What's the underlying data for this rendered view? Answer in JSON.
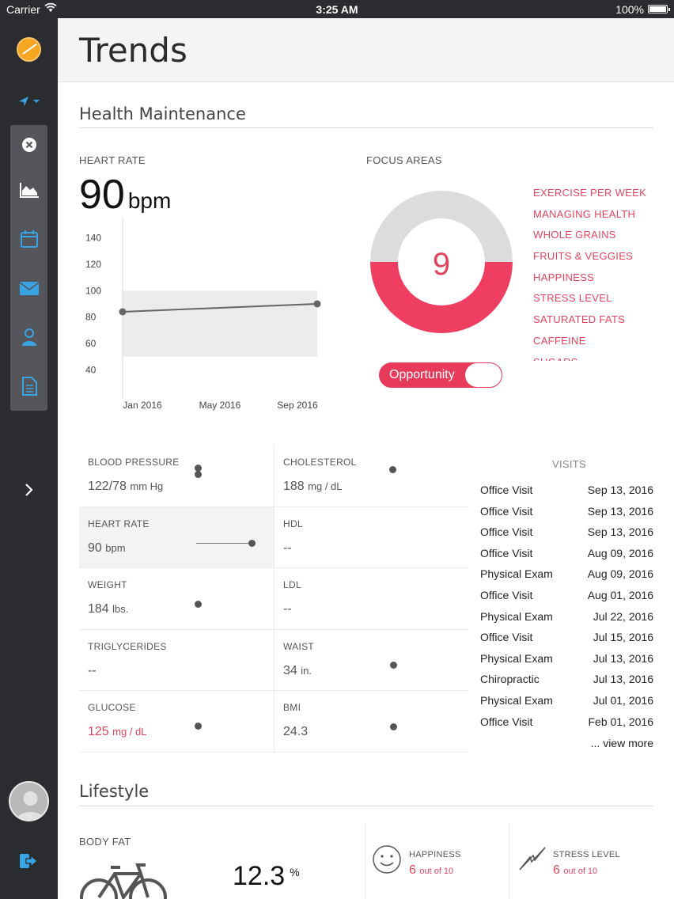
{
  "status_bar": {
    "carrier": "Carrier",
    "time": "3:25 AM",
    "battery": "100%"
  },
  "page": {
    "title": "Trends"
  },
  "health": {
    "section_title": "Health Maintenance",
    "heart_rate_label": "HEART RATE",
    "heart_rate_value": "90",
    "heart_rate_unit": "bpm",
    "focus_label": "FOCUS AREAS",
    "focus_count": "9",
    "focus_items": [
      "EXERCISE PER WEEK",
      "MANAGING HEALTH",
      "WHOLE GRAINS",
      "FRUITS & VEGGIES",
      "HAPPINESS",
      "STRESS LEVEL",
      "SATURATED FATS",
      "CAFFEINE",
      "SUGARS"
    ],
    "toggle_label": "Opportunity",
    "accent_color": "#e83a5a"
  },
  "chart_data": {
    "type": "line",
    "y_ticks": [
      "140",
      "120",
      "100",
      "80",
      "60",
      "40"
    ],
    "x_ticks": [
      "Jan 2016",
      "May 2016",
      "Sep 2016"
    ],
    "ylim": [
      30,
      150
    ],
    "xlim": [
      "2015-12",
      "2016-10"
    ],
    "normal_band": [
      50,
      100
    ],
    "series": [
      {
        "x": [
          "2015-12",
          "2016-10"
        ],
        "values": [
          84,
          90
        ]
      }
    ]
  },
  "metrics": [
    {
      "label": "BLOOD PRESSURE",
      "value": "122/78",
      "unit": "mm Hg"
    },
    {
      "label": "CHOLESTEROL",
      "value": "188",
      "unit": "mg / dL"
    },
    {
      "label": "HEART RATE",
      "value": "90",
      "unit": "bpm"
    },
    {
      "label": "HDL",
      "value": "--",
      "unit": ""
    },
    {
      "label": "WEIGHT",
      "value": "184",
      "unit": "lbs."
    },
    {
      "label": "LDL",
      "value": "--",
      "unit": ""
    },
    {
      "label": "TRIGLYCERIDES",
      "value": "--",
      "unit": ""
    },
    {
      "label": "WAIST",
      "value": "34",
      "unit": "in."
    },
    {
      "label": "GLUCOSE",
      "value": "125",
      "unit": "mg / dL"
    },
    {
      "label": "BMI",
      "value": "24.3",
      "unit": ""
    }
  ],
  "visits": {
    "title": "VISITS",
    "rows": [
      {
        "type": "Office Visit",
        "date": "Sep 13, 2016"
      },
      {
        "type": "Office Visit",
        "date": "Sep 13, 2016"
      },
      {
        "type": "Office Visit",
        "date": "Sep 13, 2016"
      },
      {
        "type": "Office Visit",
        "date": "Aug 09, 2016"
      },
      {
        "type": "Physical Exam",
        "date": "Aug 09, 2016"
      },
      {
        "type": "Office Visit",
        "date": "Aug 01, 2016"
      },
      {
        "type": "Physical Exam",
        "date": "Jul 22, 2016"
      },
      {
        "type": "Office Visit",
        "date": "Jul 15, 2016"
      },
      {
        "type": "Physical Exam",
        "date": "Jul 13, 2016"
      },
      {
        "type": "Chiropractic",
        "date": "Jul 13, 2016"
      },
      {
        "type": "Physical Exam",
        "date": "Jul 01, 2016"
      },
      {
        "type": "Office Visit",
        "date": "Feb 01, 2016"
      }
    ],
    "view_more": "... view more"
  },
  "lifestyle": {
    "section_title": "Lifestyle",
    "body_fat_label": "BODY FAT",
    "body_fat_value": "12.3",
    "body_fat_unit": "%",
    "happiness_label": "HAPPINESS",
    "happiness_value": "6",
    "happiness_suffix": "out of 10",
    "stress_label": "STRESS LEVEL",
    "stress_value": "6",
    "stress_suffix": "out of 10"
  }
}
